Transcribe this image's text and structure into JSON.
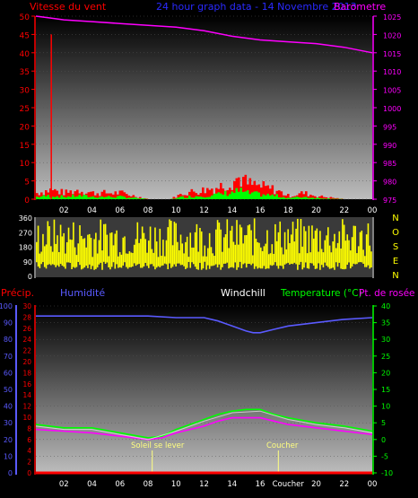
{
  "header": {
    "wind_label": "Vitesse du vent",
    "title": "24 hour graph data - 14 Novembre 2013",
    "baro_label": "Barometre"
  },
  "colors": {
    "wind": "#ff0000",
    "gust": "#ff0000",
    "wind_avg": "#00ff00",
    "baro": "#ff00ff",
    "title": "#2a2aff",
    "direction": "#ffff00",
    "humidity": "#5a5aff",
    "temperature": "#00ff00",
    "dewpoint": "#ff00ff",
    "windchill": "#ffffff",
    "precip": "#ff0000",
    "sun": "#ffff80",
    "left_axis": "#ff0000",
    "right_axis": "#ff00ff"
  },
  "x_ticks": [
    "02",
    "04",
    "06",
    "08",
    "10",
    "12",
    "14",
    "16",
    "18",
    "20",
    "22",
    "00"
  ],
  "legend": {
    "precip": "Précip.",
    "humidity": "Humidité",
    "windchill": "Windchill",
    "temperature": "Temperature (°C)",
    "dewpoint": "Pt. de rosée"
  },
  "annotations": {
    "sunrise": "Soleil se lever",
    "sunset": "Coucher",
    "sunset_tick": "Coucher"
  },
  "chart_data": [
    {
      "type": "bar",
      "name": "wind_baro",
      "ylim_left": [
        0,
        50
      ],
      "ylim_right": [
        975,
        1025
      ],
      "left_ticks": [
        0,
        5,
        10,
        15,
        20,
        25,
        30,
        35,
        40,
        45,
        50
      ],
      "right_ticks": [
        975,
        980,
        985,
        990,
        995,
        1000,
        1005,
        1010,
        1015,
        1020,
        1025
      ],
      "gust_spike": {
        "x": 1.1,
        "value": 45
      },
      "wind_profile": [
        [
          0,
          2
        ],
        [
          1,
          3
        ],
        [
          2,
          2
        ],
        [
          3,
          3
        ],
        [
          4,
          2
        ],
        [
          5,
          2
        ],
        [
          6,
          2
        ],
        [
          7,
          1
        ],
        [
          8,
          0
        ],
        [
          9,
          0
        ],
        [
          9.5,
          0
        ],
        [
          10.5,
          2
        ],
        [
          12,
          3
        ],
        [
          13,
          4
        ],
        [
          14,
          6
        ],
        [
          14.5,
          7
        ],
        [
          15,
          5
        ],
        [
          16,
          4
        ],
        [
          17,
          3
        ],
        [
          18,
          1
        ],
        [
          19,
          2
        ],
        [
          20,
          1
        ],
        [
          22,
          0
        ],
        [
          24,
          0
        ]
      ],
      "baro": [
        [
          0,
          1025
        ],
        [
          1,
          1024.5
        ],
        [
          2,
          1024
        ],
        [
          4,
          1023.5
        ],
        [
          6,
          1023
        ],
        [
          8,
          1022.5
        ],
        [
          10,
          1022
        ],
        [
          12,
          1021
        ],
        [
          14,
          1019.5
        ],
        [
          16,
          1018.5
        ],
        [
          18,
          1018
        ],
        [
          20,
          1017.5
        ],
        [
          22,
          1016.5
        ],
        [
          24,
          1015
        ]
      ]
    },
    {
      "type": "scatter",
      "name": "wind_direction",
      "ylim": [
        0,
        360
      ],
      "ticks": [
        0,
        90,
        180,
        270,
        360
      ],
      "labels_right": [
        "N",
        "O",
        "S",
        "E",
        "N"
      ]
    },
    {
      "type": "line",
      "name": "temperature_humidity",
      "ylim_left": [
        0,
        100
      ],
      "ylim_right": [
        -10,
        40
      ],
      "left_ticks": [
        0,
        10,
        20,
        30,
        40,
        50,
        60,
        70,
        80,
        90,
        100
      ],
      "right_ticks": [
        -10,
        -5,
        0,
        5,
        10,
        15,
        20,
        25,
        30,
        35,
        40
      ],
      "precip_ticks": [
        0,
        2,
        4,
        6,
        8,
        10,
        12,
        14,
        16,
        18,
        20,
        22,
        24,
        26,
        28,
        30
      ],
      "series": [
        {
          "name": "Humidité",
          "axis": "left",
          "points": [
            [
              0,
              94
            ],
            [
              1,
              94
            ],
            [
              2,
              94
            ],
            [
              4,
              94
            ],
            [
              6,
              94
            ],
            [
              8,
              94
            ],
            [
              10,
              93
            ],
            [
              12,
              93
            ],
            [
              13,
              91
            ],
            [
              14,
              88
            ],
            [
              15,
              85
            ],
            [
              15.5,
              84
            ],
            [
              16,
              84
            ],
            [
              17,
              86
            ],
            [
              18,
              88
            ],
            [
              20,
              90
            ],
            [
              22,
              92
            ],
            [
              24,
              93
            ]
          ]
        },
        {
          "name": "Temperature (°C)",
          "axis": "right",
          "points": [
            [
              0,
              4.5
            ],
            [
              2,
              3.5
            ],
            [
              4,
              3.5
            ],
            [
              6,
              2
            ],
            [
              8,
              0.5
            ],
            [
              9,
              1
            ],
            [
              10,
              3
            ],
            [
              12,
              6
            ],
            [
              13,
              7.5
            ],
            [
              14,
              8.5
            ],
            [
              15,
              9
            ],
            [
              16,
              9
            ],
            [
              17,
              7.5
            ],
            [
              18,
              6.5
            ],
            [
              20,
              5
            ],
            [
              22,
              4
            ],
            [
              24,
              2.5
            ]
          ]
        },
        {
          "name": "Pt. de rosée",
          "axis": "right",
          "points": [
            [
              0,
              3
            ],
            [
              2,
              2.5
            ],
            [
              4,
              2
            ],
            [
              6,
              1
            ],
            [
              8,
              0
            ],
            [
              9,
              0.5
            ],
            [
              10,
              2
            ],
            [
              12,
              4
            ],
            [
              13,
              5.5
            ],
            [
              14,
              6.5
            ],
            [
              15,
              6.5
            ],
            [
              16,
              6.5
            ],
            [
              17,
              5.5
            ],
            [
              18,
              4.5
            ],
            [
              20,
              3.5
            ],
            [
              22,
              2.5
            ],
            [
              24,
              1.5
            ]
          ]
        },
        {
          "name": "Windchill",
          "axis": "right",
          "points": [
            [
              0,
              4
            ],
            [
              2,
              3
            ],
            [
              4,
              3
            ],
            [
              6,
              1.5
            ],
            [
              8,
              0
            ],
            [
              10,
              2.5
            ],
            [
              12,
              5.5
            ],
            [
              14,
              8
            ],
            [
              16,
              8.5
            ],
            [
              18,
              6
            ],
            [
              20,
              4.5
            ],
            [
              22,
              3.5
            ],
            [
              24,
              2
            ]
          ]
        },
        {
          "name": "Précip.",
          "axis": "precip",
          "points": [
            [
              0,
              0
            ],
            [
              24,
              0
            ]
          ]
        }
      ],
      "sunrise_hour": 8.3,
      "sunset_hour": 17.3
    }
  ]
}
